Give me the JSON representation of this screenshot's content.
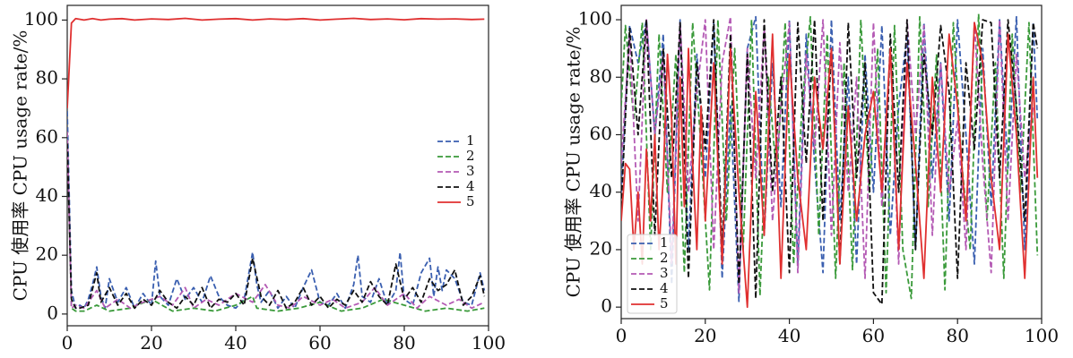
{
  "chart_data": [
    {
      "type": "line",
      "title": "",
      "ylabel": "CPU 使用率 CPU usage rate/%",
      "xlabel": "",
      "xlim": [
        0,
        100
      ],
      "ylim": [
        0,
        100
      ],
      "xticks": [
        0,
        20,
        40,
        60,
        80,
        100
      ],
      "yticks": [
        0,
        20,
        40,
        60,
        80,
        100
      ],
      "legend": "right-middle",
      "grid": false,
      "series": [
        {
          "name": "1",
          "color": "#3a5fb0",
          "style": "dashed",
          "x": [
            0,
            1,
            2,
            3,
            4,
            5,
            6,
            7,
            8,
            9,
            10,
            12,
            14,
            16,
            18,
            20,
            21,
            22,
            24,
            26,
            28,
            30,
            32,
            34,
            36,
            38,
            40,
            42,
            44,
            45,
            46,
            48,
            50,
            52,
            54,
            56,
            58,
            60,
            62,
            64,
            66,
            68,
            69,
            70,
            72,
            74,
            76,
            78,
            79,
            80,
            82,
            84,
            86,
            87,
            88,
            89,
            90,
            92,
            94,
            96,
            98,
            99
          ],
          "y": [
            69,
            8,
            2,
            3,
            2,
            5,
            10,
            16,
            6,
            2,
            12,
            4,
            9,
            2,
            7,
            3,
            18,
            6,
            3,
            12,
            5,
            9,
            4,
            13,
            6,
            3,
            2,
            5,
            21,
            10,
            4,
            8,
            2,
            6,
            2,
            9,
            15,
            4,
            3,
            7,
            2,
            10,
            20,
            6,
            4,
            12,
            3,
            8,
            21,
            5,
            3,
            14,
            19,
            6,
            16,
            8,
            15,
            12,
            4,
            3,
            14,
            8
          ]
        },
        {
          "name": "2",
          "color": "#3a9a3a",
          "style": "dashed",
          "x": [
            0,
            1,
            2,
            4,
            7,
            10,
            15,
            20,
            25,
            30,
            35,
            40,
            44,
            45,
            50,
            55,
            60,
            65,
            70,
            75,
            80,
            85,
            90,
            95,
            99
          ],
          "y": [
            62,
            2,
            1,
            1,
            3,
            1,
            2,
            5,
            1,
            2,
            1,
            3,
            6,
            2,
            1,
            2,
            4,
            1,
            2,
            5,
            3,
            1,
            2,
            1,
            2
          ]
        },
        {
          "name": "3",
          "color": "#b45ab4",
          "style": "dashed",
          "x": [
            0,
            1,
            2,
            4,
            7,
            9,
            12,
            15,
            18,
            22,
            25,
            28,
            30,
            33,
            36,
            40,
            44,
            47,
            50,
            53,
            56,
            60,
            63,
            66,
            70,
            73,
            76,
            80,
            83,
            86,
            90,
            93,
            96,
            99
          ],
          "y": [
            62,
            2,
            3,
            2,
            8,
            2,
            5,
            2,
            4,
            6,
            3,
            9,
            2,
            5,
            3,
            7,
            4,
            10,
            3,
            2,
            6,
            3,
            5,
            2,
            4,
            9,
            3,
            7,
            2,
            6,
            3,
            5,
            2,
            4
          ]
        },
        {
          "name": "4",
          "color": "#111111",
          "style": "dashed",
          "x": [
            0,
            1,
            2,
            3,
            5,
            7,
            8,
            10,
            12,
            14,
            16,
            18,
            20,
            22,
            24,
            26,
            28,
            30,
            32,
            34,
            36,
            38,
            40,
            42,
            44,
            46,
            48,
            50,
            52,
            54,
            56,
            58,
            60,
            62,
            64,
            66,
            68,
            70,
            72,
            74,
            76,
            78,
            80,
            82,
            84,
            86,
            88,
            90,
            92,
            94,
            96,
            98,
            99
          ],
          "y": [
            58,
            5,
            2,
            2,
            3,
            14,
            4,
            9,
            3,
            7,
            2,
            5,
            3,
            8,
            4,
            2,
            6,
            3,
            9,
            2,
            5,
            4,
            7,
            3,
            19,
            6,
            3,
            8,
            2,
            4,
            9,
            3,
            6,
            2,
            5,
            3,
            8,
            4,
            11,
            6,
            3,
            17,
            5,
            9,
            4,
            12,
            8,
            10,
            15,
            3,
            6,
            13,
            6
          ]
        },
        {
          "name": "5",
          "color": "#e03030",
          "style": "solid",
          "x": [
            0,
            1,
            2,
            4,
            6,
            8,
            10,
            13,
            16,
            20,
            24,
            28,
            32,
            36,
            40,
            44,
            48,
            52,
            56,
            60,
            64,
            68,
            72,
            76,
            80,
            84,
            88,
            92,
            96,
            99
          ],
          "y": [
            70,
            99,
            100.5,
            100,
            100.5,
            100,
            100.3,
            100.5,
            100,
            100.4,
            100.2,
            100.6,
            100,
            100.3,
            100.5,
            100,
            100.4,
            100.2,
            100.5,
            100,
            100.3,
            100.6,
            100.2,
            100.4,
            100.1,
            100.5,
            100.3,
            100.4,
            100.2,
            100.3
          ]
        }
      ]
    },
    {
      "type": "line",
      "title": "",
      "ylabel": "CPU 使用率 CPU usage rate/%",
      "xlabel": "",
      "xlim": [
        0,
        100
      ],
      "ylim": [
        0,
        100
      ],
      "xticks": [
        0,
        20,
        40,
        60,
        80,
        100
      ],
      "yticks": [
        0,
        20,
        40,
        60,
        80,
        100
      ],
      "legend": "lower-left",
      "grid": false,
      "series": [
        {
          "name": "1",
          "color": "#3a5fb0",
          "style": "dashed",
          "x": [
            0,
            2,
            4,
            6,
            8,
            10,
            12,
            14,
            16,
            18,
            20,
            22,
            24,
            26,
            28,
            30,
            32,
            34,
            36,
            38,
            40,
            42,
            44,
            46,
            48,
            50,
            52,
            54,
            56,
            58,
            60,
            62,
            64,
            66,
            68,
            70,
            72,
            74,
            76,
            78,
            80,
            82,
            84,
            86,
            88,
            90,
            92,
            94,
            96,
            98,
            99
          ],
          "y": [
            40,
            98,
            85,
            100,
            60,
            95,
            8,
            100,
            20,
            88,
            45,
            99,
            10,
            70,
            2,
            90,
            101,
            25,
            85,
            35,
            100,
            15,
            95,
            50,
            12,
            100,
            30,
            80,
            15,
            88,
            40,
            98,
            25,
            70,
            95,
            20,
            99,
            45,
            85,
            30,
            100,
            60,
            15,
            90,
            35,
            100,
            48,
            101,
            20,
            99,
            65
          ]
        },
        {
          "name": "2",
          "color": "#3a9a3a",
          "style": "dashed",
          "x": [
            0,
            1,
            3,
            5,
            7,
            9,
            11,
            13,
            15,
            17,
            19,
            21,
            23,
            25,
            27,
            29,
            31,
            33,
            35,
            37,
            39,
            41,
            43,
            45,
            47,
            49,
            51,
            53,
            55,
            57,
            59,
            61,
            63,
            65,
            67,
            69,
            71,
            73,
            75,
            77,
            79,
            81,
            83,
            85,
            87,
            89,
            91,
            93,
            95,
            97,
            99
          ],
          "y": [
            70,
            98,
            65,
            99,
            20,
            95,
            40,
            88,
            12,
            99,
            55,
            6,
            100,
            30,
            90,
            20,
            100,
            4,
            80,
            45,
            99,
            15,
            70,
            101,
            25,
            95,
            10,
            85,
            13,
            100,
            40,
            90,
            5,
            98,
            20,
            3,
            101,
            35,
            88,
            6,
            99,
            50,
            20,
            102,
            30,
            85,
            10,
            95,
            40,
            99,
            18
          ]
        },
        {
          "name": "3",
          "color": "#b45ab4",
          "style": "dashed",
          "x": [
            0,
            2,
            4,
            6,
            8,
            10,
            12,
            14,
            16,
            18,
            20,
            22,
            24,
            26,
            28,
            30,
            32,
            34,
            36,
            38,
            40,
            42,
            44,
            46,
            48,
            50,
            52,
            54,
            56,
            58,
            60,
            62,
            64,
            66,
            68,
            70,
            72,
            74,
            76,
            78,
            80,
            82,
            84,
            86,
            88,
            90,
            92,
            94,
            96,
            98
          ],
          "y": [
            50,
            95,
            30,
            100,
            60,
            88,
            15,
            99,
            40,
            75,
            100,
            20,
            85,
            101,
            5,
            90,
            45,
            98,
            30,
            70,
            99,
            12,
            88,
            55,
            100,
            25,
            92,
            40,
            80,
            10,
            99,
            35,
            90,
            15,
            100,
            60,
            98,
            25,
            85,
            40,
            65,
            20,
            99,
            50,
            12,
            100,
            30,
            88,
            45,
            70
          ]
        },
        {
          "name": "4",
          "color": "#111111",
          "style": "dashed",
          "x": [
            0,
            2,
            4,
            6,
            8,
            10,
            12,
            14,
            16,
            18,
            20,
            22,
            24,
            26,
            28,
            30,
            32,
            34,
            36,
            38,
            40,
            42,
            44,
            46,
            48,
            50,
            52,
            54,
            56,
            58,
            60,
            62,
            64,
            66,
            68,
            70,
            72,
            74,
            76,
            78,
            80,
            82,
            84,
            86,
            88,
            90,
            92,
            94,
            96,
            98,
            99
          ],
          "y": [
            35,
            97,
            60,
            100,
            25,
            90,
            45,
            99,
            10,
            85,
            55,
            100,
            20,
            95,
            8,
            88,
            3,
            100,
            40,
            80,
            12,
            99,
            50,
            100,
            30,
            90,
            15,
            99,
            45,
            85,
            5,
            1,
            95,
            40,
            100,
            20,
            88,
            60,
            98,
            75,
            10,
            85,
            55,
            100,
            99,
            45,
            100,
            70,
            30,
            99,
            90
          ]
        },
        {
          "name": "5",
          "color": "#e03030",
          "style": "solid",
          "x": [
            0,
            1,
            2,
            3,
            4,
            5,
            6,
            7,
            8,
            9,
            10,
            11,
            12,
            13,
            14,
            15,
            16,
            17,
            18,
            19,
            20,
            22,
            24,
            26,
            28,
            30,
            32,
            34,
            36,
            38,
            40,
            42,
            44,
            46,
            48,
            50,
            52,
            54,
            56,
            58,
            60,
            62,
            64,
            66,
            68,
            70,
            72,
            74,
            76,
            78,
            80,
            82,
            84,
            86,
            88,
            90,
            92,
            94,
            96,
            98,
            99
          ],
          "y": [
            30,
            50,
            48,
            20,
            40,
            15,
            55,
            30,
            60,
            20,
            45,
            88,
            65,
            15,
            80,
            35,
            90,
            50,
            20,
            70,
            30,
            85,
            15,
            90,
            40,
            0,
            75,
            25,
            95,
            10,
            88,
            45,
            20,
            80,
            55,
            90,
            15,
            70,
            30,
            60,
            75,
            40,
            90,
            20,
            85,
            50,
            10,
            80,
            40,
            95,
            70,
            30,
            99,
            85,
            45,
            20,
            95,
            60,
            10,
            80,
            45
          ]
        }
      ]
    }
  ]
}
